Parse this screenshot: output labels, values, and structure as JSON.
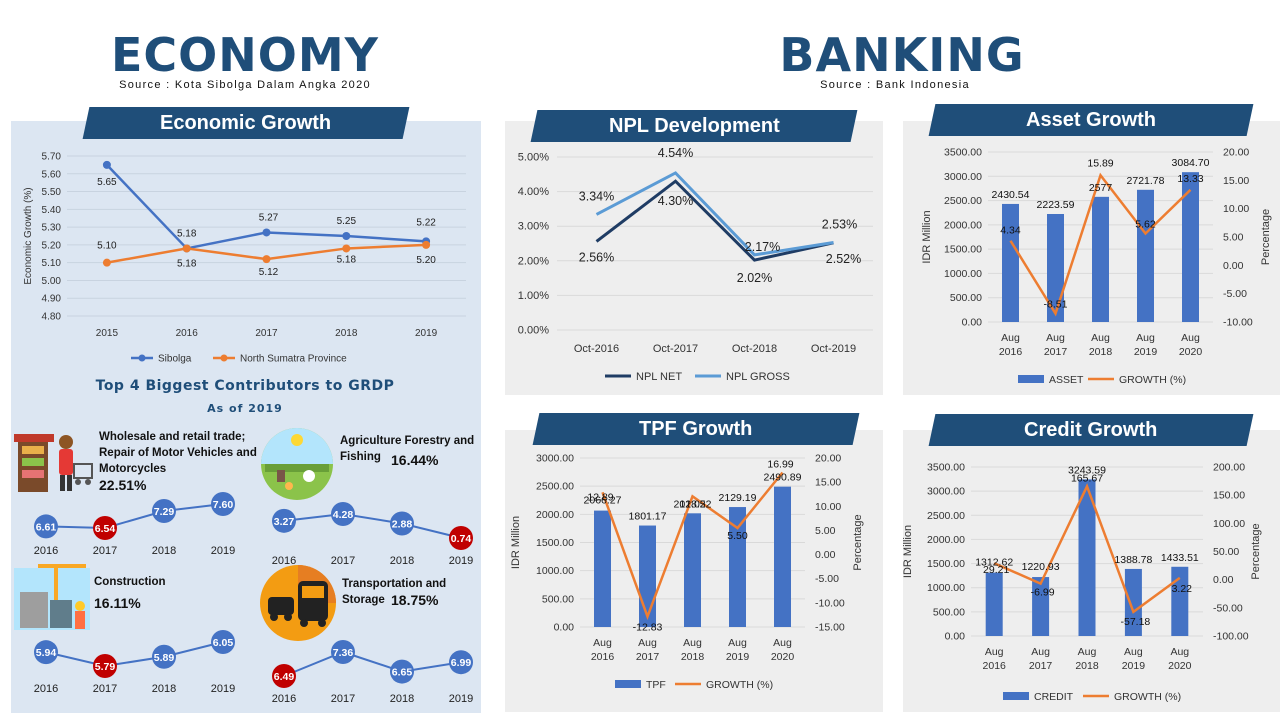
{
  "header": {
    "economy_title": "ECONOMY",
    "economy_source": "Source : Kota Sibolga Dalam Angka 2020",
    "banking_title": "BANKING",
    "banking_source": "Source : Bank Indonesia"
  },
  "contributors": {
    "title": "Top 4 Biggest Contributors to GRDP",
    "subtitle": "As of 2019",
    "sectors": [
      {
        "name": "Wholesale and retail trade; Repair of Motor Vehicles and Motorcycles",
        "share": "22.51%",
        "years": [
          "2016",
          "2017",
          "2018",
          "2019"
        ],
        "values": [
          6.61,
          6.54,
          7.29,
          7.6
        ],
        "labels": [
          "6.61",
          "6.54",
          "7.29",
          "7.60"
        ],
        "icon": "shop-icon"
      },
      {
        "name": "Agriculture Forestry and Fishing",
        "share": "16.44%",
        "years": [
          "2016",
          "2017",
          "2018",
          "2019"
        ],
        "values": [
          3.27,
          4.28,
          2.88,
          0.74
        ],
        "labels": [
          "3.27",
          "4.28",
          "2.88",
          "0.74"
        ],
        "icon": "farm-icon"
      },
      {
        "name": "Construction",
        "share": "16.11%",
        "years": [
          "2016",
          "2017",
          "2018",
          "2019"
        ],
        "values": [
          5.94,
          5.79,
          5.89,
          6.05
        ],
        "labels": [
          "5.94",
          "5.79",
          "5.89",
          "6.05"
        ],
        "icon": "construction-icon"
      },
      {
        "name": "Transportation and Storage",
        "share": "18.75%",
        "years": [
          "2016",
          "2017",
          "2018",
          "2019"
        ],
        "values": [
          6.49,
          7.36,
          6.65,
          6.99
        ],
        "labels": [
          "6.49",
          "7.36",
          "6.65",
          "6.99"
        ],
        "icon": "transport-icon"
      }
    ]
  },
  "colors": {
    "navy": "#1f4e79",
    "bar": "#4472c4",
    "orange": "#ed7d31",
    "lightblue": "#5b9bd5",
    "red_marker": "#c00000"
  },
  "chart_data": [
    {
      "id": "economic-growth",
      "type": "line",
      "title": "Economic Growth",
      "ylabel": "Economic Growth (%)",
      "ylim": [
        4.8,
        5.7
      ],
      "yticks": [
        "5.70",
        "5.60",
        "5.50",
        "5.40",
        "5.30",
        "5.20",
        "5.10",
        "5.00",
        "4.90",
        "4.80"
      ],
      "x": [
        "2015",
        "2016",
        "2017",
        "2018",
        "2019"
      ],
      "series": [
        {
          "name": "Sibolga",
          "values": [
            5.65,
            5.18,
            5.27,
            5.25,
            5.22
          ],
          "labels": [
            "5.65",
            "5.18",
            "5.27",
            "5.25",
            "5.22"
          ]
        },
        {
          "name": "North Sumatra Province",
          "values": [
            5.1,
            5.18,
            5.12,
            5.18,
            5.2
          ],
          "labels": [
            "5.10",
            "5.18",
            "5.12",
            "5.18",
            "5.20"
          ]
        }
      ],
      "legend": "bottom"
    },
    {
      "id": "npl-development",
      "type": "line",
      "title": "NPL Development",
      "ylim": [
        0,
        5
      ],
      "yticks": [
        "5.00%",
        "4.00%",
        "3.00%",
        "2.00%",
        "1.00%",
        "0.00%"
      ],
      "x": [
        "Oct-2016",
        "Oct-2017",
        "Oct-2018",
        "Oct-2019"
      ],
      "series": [
        {
          "name": "NPL NET",
          "values": [
            2.56,
            4.3,
            2.02,
            2.52
          ],
          "labels": [
            "2.56%",
            "4.30%",
            "2.02%",
            "2.52%"
          ]
        },
        {
          "name": "NPL GROSS",
          "values": [
            3.34,
            4.54,
            2.17,
            2.53
          ],
          "labels": [
            "3.34%",
            "4.54%",
            "2.17%",
            "2.53%"
          ]
        }
      ],
      "legend": "bottom"
    },
    {
      "id": "asset-growth",
      "type": "bar",
      "title": "Asset Growth",
      "ylabel": "IDR Million",
      "y2label": "Percentage",
      "ylim": [
        0,
        3500
      ],
      "y2lim": [
        -10,
        20
      ],
      "yticks": [
        "3500.00",
        "3000.00",
        "2500.00",
        "2000.00",
        "1500.00",
        "1000.00",
        "500.00",
        "0.00"
      ],
      "y2ticks": [
        "20.00",
        "15.00",
        "10.00",
        "5.00",
        "0.00",
        "-5.00",
        "-10.00"
      ],
      "categories": [
        [
          "Aug",
          "2016"
        ],
        [
          "Aug",
          "2017"
        ],
        [
          "Aug",
          "2018"
        ],
        [
          "Aug",
          "2019"
        ],
        [
          "Aug",
          "2020"
        ]
      ],
      "series": [
        {
          "name": "ASSET",
          "values": [
            2430.54,
            2223.59,
            2577,
            2721.78,
            3084.7
          ],
          "labels": [
            "2430.54",
            "2223.59",
            "2577",
            "2721.78",
            "3084.70"
          ]
        },
        {
          "name": "GROWTH (%)",
          "values": [
            4.34,
            -8.51,
            15.89,
            5.62,
            13.33
          ],
          "labels": [
            "4.34",
            "-8.51",
            "15.89",
            "5.62",
            "13.33"
          ]
        }
      ],
      "legend": "bottom"
    },
    {
      "id": "tpf-growth",
      "type": "bar",
      "title": "TPF Growth",
      "ylabel": "IDR Million",
      "y2label": "Percentage",
      "ylim": [
        0,
        3000
      ],
      "y2lim": [
        -15,
        20
      ],
      "yticks": [
        "3000.00",
        "2500.00",
        "2000.00",
        "1500.00",
        "1000.00",
        "500.00",
        "0.00"
      ],
      "y2ticks": [
        "20.00",
        "15.00",
        "10.00",
        "5.00",
        "0.00",
        "-5.00",
        "-10.00",
        "-15.00"
      ],
      "categories": [
        [
          "Aug",
          "2016"
        ],
        [
          "Aug",
          "2017"
        ],
        [
          "Aug",
          "2018"
        ],
        [
          "Aug",
          "2019"
        ],
        [
          "Aug",
          "2020"
        ]
      ],
      "series": [
        {
          "name": "TPF",
          "values": [
            2066.27,
            1801.17,
            2018.22,
            2129.19,
            2490.89
          ],
          "labels": [
            "2066.27",
            "1801.17",
            "2018.22",
            "2129.19",
            "2490.89"
          ]
        },
        {
          "name": "GROWTH (%)",
          "values": [
            12.89,
            -12.83,
            12.05,
            5.5,
            16.99
          ],
          "labels": [
            "12.89",
            "-12.83",
            "12.05",
            "5.50",
            "16.99"
          ]
        }
      ],
      "legend": "bottom"
    },
    {
      "id": "credit-growth",
      "type": "bar",
      "title": "Credit Growth",
      "ylabel": "IDR Million",
      "y2label": "Percentage",
      "ylim": [
        0,
        3500
      ],
      "y2lim": [
        -100,
        200
      ],
      "yticks": [
        "3500.00",
        "3000.00",
        "2500.00",
        "2000.00",
        "1500.00",
        "1000.00",
        "500.00",
        "0.00"
      ],
      "y2ticks": [
        "200.00",
        "150.00",
        "100.00",
        "50.00",
        "0.00",
        "-50.00",
        "-100.00"
      ],
      "categories": [
        [
          "Aug",
          "2016"
        ],
        [
          "Aug",
          "2017"
        ],
        [
          "Aug",
          "2018"
        ],
        [
          "Aug",
          "2019"
        ],
        [
          "Aug",
          "2020"
        ]
      ],
      "series": [
        {
          "name": "CREDIT",
          "values": [
            1312.62,
            1220.93,
            3243.59,
            1388.78,
            1433.51
          ],
          "labels": [
            "1312.62",
            "1220.93",
            "3243.59",
            "1388.78",
            "1433.51"
          ]
        },
        {
          "name": "GROWTH (%)",
          "values": [
            29.21,
            -6.99,
            165.67,
            -57.18,
            3.22
          ],
          "labels": [
            "29.21",
            "-6.99",
            "165.67",
            "-57.18",
            "3.22"
          ]
        }
      ],
      "legend": "bottom"
    }
  ]
}
